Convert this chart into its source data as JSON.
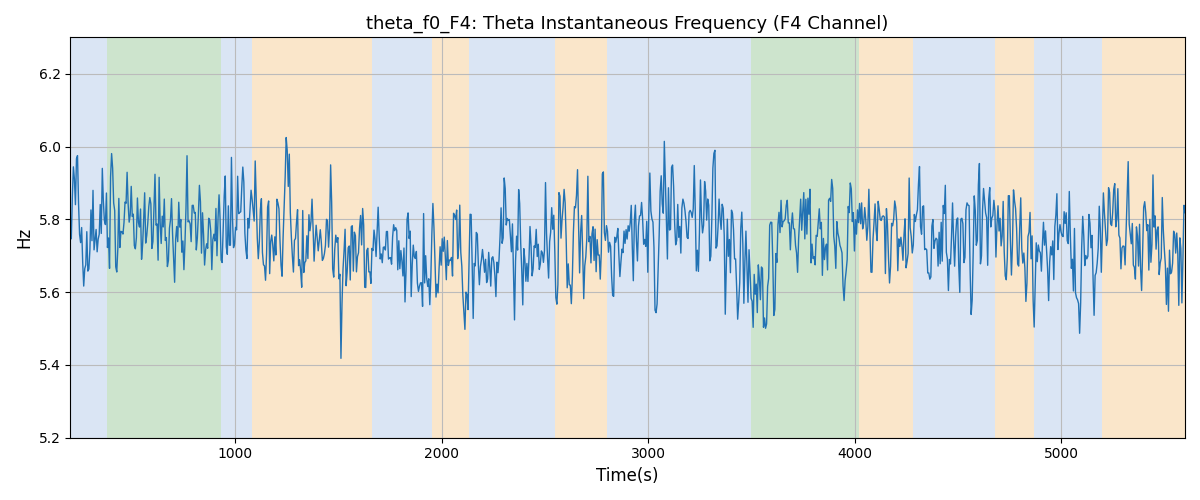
{
  "title": "theta_f0_F4: Theta Instantaneous Frequency (F4 Channel)",
  "xlabel": "Time(s)",
  "ylabel": "Hz",
  "xlim": [
    200,
    5600
  ],
  "ylim": [
    5.2,
    6.3
  ],
  "yticks": [
    5.2,
    5.4,
    5.6,
    5.8,
    6.0,
    6.2
  ],
  "xticks": [
    1000,
    2000,
    3000,
    4000,
    5000
  ],
  "line_color": "#2272b4",
  "line_width": 1.0,
  "bg_bands": [
    {
      "xmin": 200,
      "xmax": 380,
      "color": "#aec6e8",
      "alpha": 0.45
    },
    {
      "xmin": 380,
      "xmax": 930,
      "color": "#90c490",
      "alpha": 0.45
    },
    {
      "xmin": 930,
      "xmax": 1080,
      "color": "#aec6e8",
      "alpha": 0.45
    },
    {
      "xmin": 1080,
      "xmax": 1660,
      "color": "#f4c98a",
      "alpha": 0.45
    },
    {
      "xmin": 1660,
      "xmax": 1950,
      "color": "#aec6e8",
      "alpha": 0.45
    },
    {
      "xmin": 1950,
      "xmax": 2130,
      "color": "#f4c98a",
      "alpha": 0.45
    },
    {
      "xmin": 2130,
      "xmax": 2550,
      "color": "#aec6e8",
      "alpha": 0.45
    },
    {
      "xmin": 2550,
      "xmax": 2800,
      "color": "#f4c98a",
      "alpha": 0.45
    },
    {
      "xmin": 2800,
      "xmax": 3080,
      "color": "#aec6e8",
      "alpha": 0.45
    },
    {
      "xmin": 3080,
      "xmax": 3500,
      "color": "#aec6e8",
      "alpha": 0.45
    },
    {
      "xmin": 3500,
      "xmax": 3560,
      "color": "#90c490",
      "alpha": 0.45
    },
    {
      "xmin": 3560,
      "xmax": 4020,
      "color": "#90c490",
      "alpha": 0.45
    },
    {
      "xmin": 4020,
      "xmax": 4280,
      "color": "#f4c98a",
      "alpha": 0.45
    },
    {
      "xmin": 4280,
      "xmax": 4680,
      "color": "#aec6e8",
      "alpha": 0.45
    },
    {
      "xmin": 4680,
      "xmax": 4870,
      "color": "#f4c98a",
      "alpha": 0.45
    },
    {
      "xmin": 4870,
      "xmax": 5200,
      "color": "#aec6e8",
      "alpha": 0.45
    },
    {
      "xmin": 5200,
      "xmax": 5600,
      "color": "#f4c98a",
      "alpha": 0.45
    }
  ],
  "seed": 42,
  "n_points": 1080,
  "t_start": 200,
  "t_end": 5600,
  "base_freq": 5.75,
  "noise_scale": 0.12,
  "grid_color": "#bbbbbb",
  "bg_color": "#ffffff",
  "title_fontsize": 13
}
